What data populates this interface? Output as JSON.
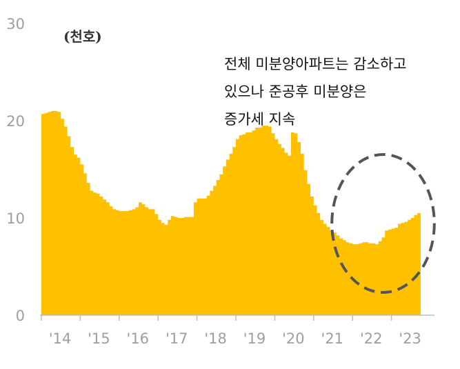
{
  "chart_data": {
    "type": "area",
    "unit_label": "(천호)",
    "annotation_lines": [
      "전체 미분양아파트는 감소하고",
      "있으나 준공후 미분양은",
      "증가세 지속"
    ],
    "ylim": [
      0,
      30
    ],
    "y_ticks": [
      "0",
      "10",
      "20",
      "30"
    ],
    "x_tick_labels": [
      "'14",
      "'15",
      "'16",
      "'17",
      "'18",
      "'19",
      "'20",
      "'21",
      "'22",
      "'23"
    ],
    "x_start": "2014-01",
    "grid": false,
    "colors": {
      "fill": "#FFC000",
      "axis": "#bdbdbd",
      "ellipse": "#555555"
    },
    "highlight": {
      "x_start": "2022-01",
      "x_end": "2023-09",
      "shape": "dashed ellipse"
    },
    "series": [
      {
        "values": [
          20.7,
          20.8,
          20.9,
          21.0,
          21.0,
          20.9,
          20.2,
          19.4,
          18.4,
          17.3,
          16.5,
          16.2,
          15.5,
          14.6,
          13.6,
          12.8,
          12.6,
          12.5,
          12.2,
          11.9,
          11.6,
          11.2,
          10.9,
          10.8,
          10.7,
          10.7,
          10.7,
          10.8,
          10.9,
          11.1,
          11.6,
          11.4,
          11.1,
          10.9,
          10.9,
          10.4,
          9.8,
          9.5,
          9.3,
          9.8,
          10.2,
          10.1,
          10.0,
          10.0,
          10.1,
          10.1,
          10.1,
          11.6,
          12.0,
          12.0,
          12.0,
          12.3,
          12.8,
          13.3,
          13.9,
          14.5,
          15.3,
          16.0,
          16.6,
          17.3,
          18.1,
          18.5,
          18.6,
          18.8,
          18.8,
          19.0,
          19.3,
          19.3,
          19.5,
          19.5,
          19.4,
          18.7,
          18.1,
          17.6,
          17.2,
          16.7,
          16.4,
          18.8,
          18.7,
          17.8,
          16.6,
          14.9,
          13.5,
          12.2,
          11.3,
          10.5,
          9.8,
          9.4,
          9.1,
          8.7,
          8.5,
          8.2,
          7.9,
          7.7,
          7.5,
          7.4,
          7.3,
          7.3,
          7.4,
          7.5,
          7.5,
          7.4,
          7.4,
          7.3,
          7.6,
          8.0,
          8.7,
          8.8,
          8.9,
          9.0,
          9.4,
          9.5,
          9.6,
          9.8,
          10.0,
          10.3,
          10.5
        ]
      }
    ]
  }
}
